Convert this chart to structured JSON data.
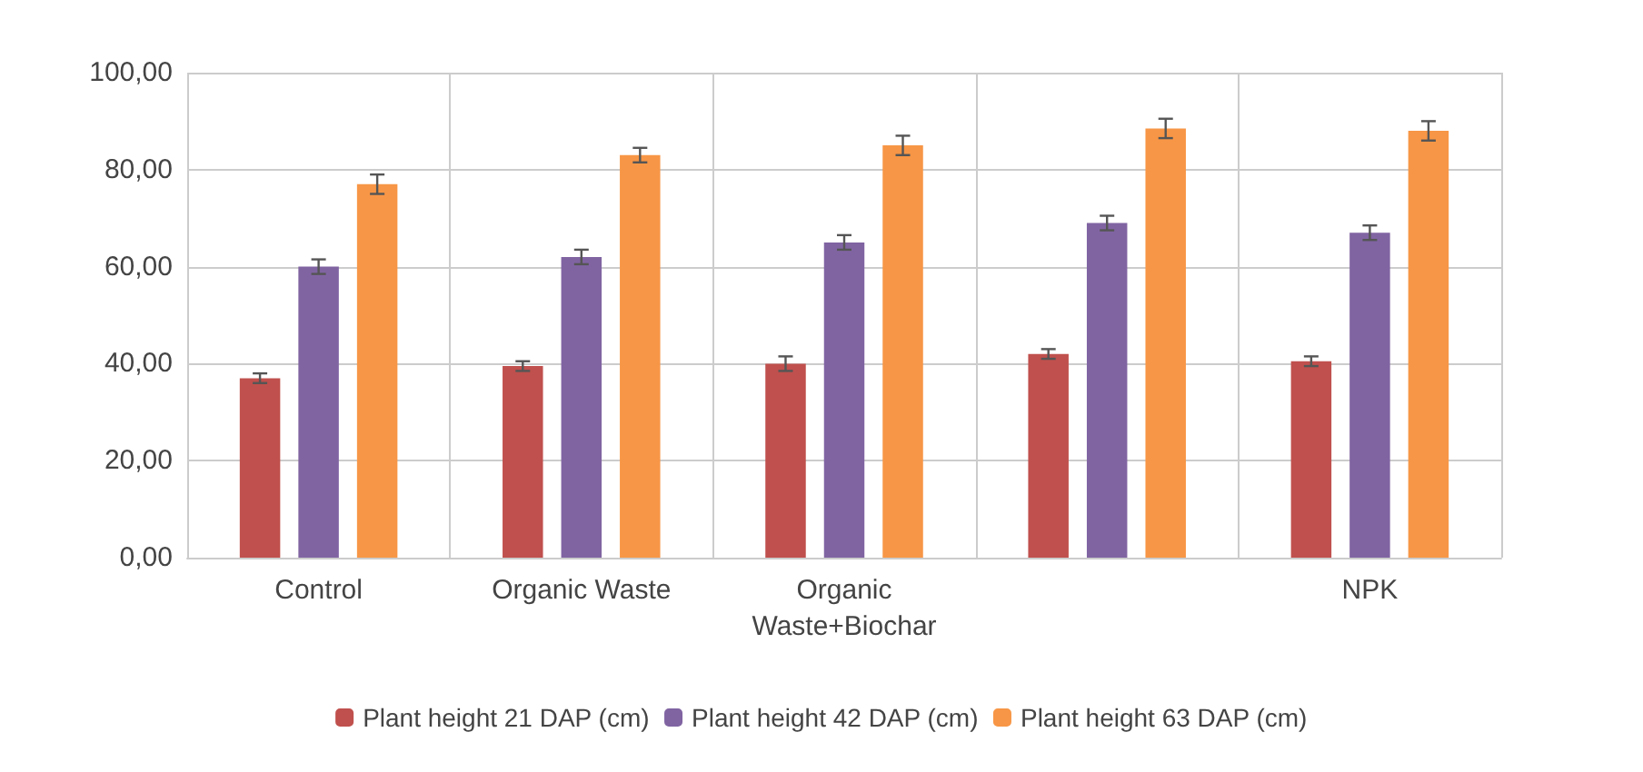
{
  "chart_data": {
    "type": "bar",
    "categories": [
      "Control",
      "Organic Waste",
      "Organic\nWaste+Biochar",
      null,
      "NPK"
    ],
    "series": [
      {
        "name": "Plant height 21 DAP (cm)",
        "color": "#c0504d",
        "values": [
          37,
          39.5,
          40,
          42,
          40.5
        ],
        "errors": [
          1,
          1,
          1.5,
          1,
          1
        ]
      },
      {
        "name": "Plant height 42 DAP (cm)",
        "color": "#8064a2",
        "values": [
          60,
          62,
          65,
          69,
          67
        ],
        "errors": [
          1.5,
          1.5,
          1.5,
          1.5,
          1.5
        ]
      },
      {
        "name": "Plant height 63 DAP (cm)",
        "color": "#f79646",
        "values": [
          77,
          83,
          85,
          88.5,
          88
        ],
        "errors": [
          2,
          1.5,
          2,
          2,
          2
        ]
      }
    ],
    "ylim": [
      0,
      100
    ],
    "yticks": [
      {
        "value": 0,
        "label": "0,00"
      },
      {
        "value": 20,
        "label": "20,00"
      },
      {
        "value": 40,
        "label": "40,00"
      },
      {
        "value": 60,
        "label": "60,00"
      },
      {
        "value": 80,
        "label": "80,00"
      },
      {
        "value": 100,
        "label": "100,00"
      }
    ],
    "grid": true,
    "legend": "bottom"
  }
}
